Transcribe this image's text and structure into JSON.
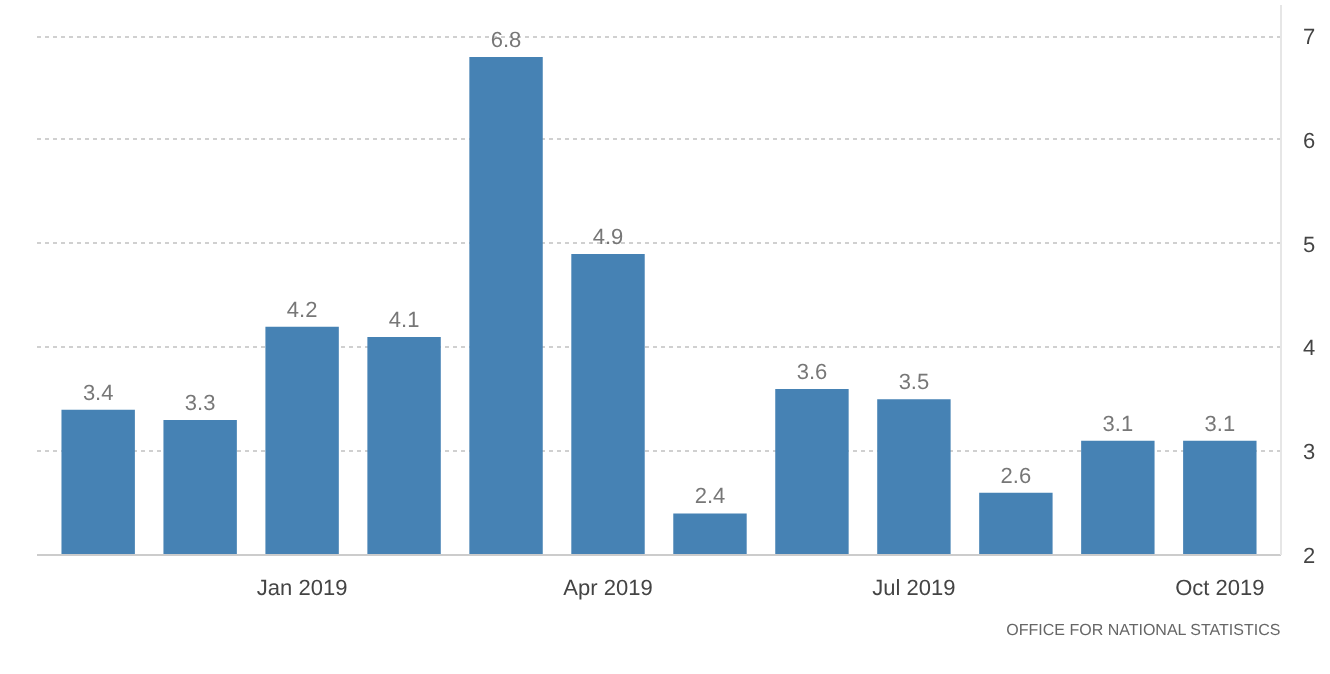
{
  "chart_data": {
    "type": "bar",
    "categories": [
      null,
      null,
      "Jan 2019",
      null,
      null,
      "Apr 2019",
      null,
      null,
      "Jul 2019",
      null,
      null,
      "Oct 2019"
    ],
    "values": [
      3.4,
      3.3,
      4.2,
      4.1,
      6.8,
      4.9,
      2.4,
      3.6,
      3.5,
      2.6,
      3.1,
      3.1
    ],
    "color": "#4682b4",
    "ylim": [
      2,
      7.3
    ],
    "yticks": [
      2,
      3,
      4,
      5,
      6,
      7
    ],
    "grid": "y",
    "data_labels": true,
    "annotations": [
      "OFFICE FOR NATIONAL STATISTICS"
    ]
  }
}
